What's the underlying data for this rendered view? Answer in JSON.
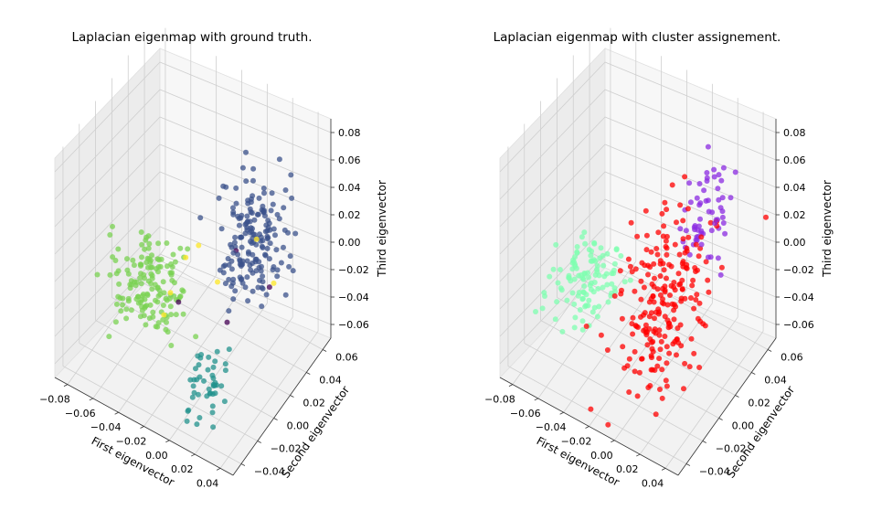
{
  "chart_data": [
    {
      "type": "scatter",
      "dimensions": 3,
      "title": "Laplacian eigenmap with ground truth.",
      "xlabel": "First eigenvector",
      "ylabel": "Second eigenvector",
      "zlabel": "Third eigenvector",
      "xlim": [
        -0.09,
        0.05
      ],
      "ylim": [
        -0.05,
        0.07
      ],
      "zlim": [
        -0.07,
        0.09
      ],
      "xticks": [
        "−0.08",
        "−0.06",
        "−0.04",
        "−0.02",
        "0.00",
        "0.02",
        "0.04"
      ],
      "yticks": [
        "−0.04",
        "−0.02",
        "0.00",
        "0.02",
        "0.04",
        "0.06"
      ],
      "zticks": [
        "−0.06",
        "−0.04",
        "−0.02",
        "0.00",
        "0.02",
        "0.04",
        "0.06",
        "0.08"
      ],
      "grid": true,
      "color_meaning": "ground-truth class",
      "clusters": [
        {
          "color": "#7ad151",
          "count": 150,
          "center": [
            -0.045,
            -0.005,
            -0.015
          ],
          "spread": [
            0.012,
            0.014,
            0.012
          ]
        },
        {
          "color": "#3b528b",
          "count": 175,
          "center": [
            0.012,
            0.035,
            0.01
          ],
          "spread": [
            0.011,
            0.013,
            0.018
          ]
        },
        {
          "color": "#21918c",
          "count": 45,
          "center": [
            0.015,
            -0.028,
            -0.04
          ],
          "spread": [
            0.005,
            0.01,
            0.012
          ]
        },
        {
          "color": "#fde725",
          "count": 7,
          "center": [
            -0.01,
            0.01,
            0.0
          ],
          "spread": [
            0.02,
            0.02,
            0.02
          ]
        },
        {
          "color": "#440154",
          "count": 4,
          "center": [
            0.01,
            0.02,
            -0.02
          ],
          "spread": [
            0.015,
            0.015,
            0.015
          ]
        }
      ]
    },
    {
      "type": "scatter",
      "dimensions": 3,
      "title": "Laplacian eigenmap with cluster assignement.",
      "xlabel": "First eigenvector",
      "ylabel": "Second eigenvector",
      "zlabel": "Third eigenvector",
      "xlim": [
        -0.09,
        0.05
      ],
      "ylim": [
        -0.05,
        0.07
      ],
      "zlim": [
        -0.07,
        0.09
      ],
      "xticks": [
        "−0.08",
        "−0.06",
        "−0.04",
        "−0.02",
        "0.00",
        "0.02",
        "0.04"
      ],
      "yticks": [
        "−0.04",
        "−0.02",
        "0.00",
        "0.02",
        "0.04",
        "0.06"
      ],
      "zticks": [
        "−0.06",
        "−0.04",
        "−0.02",
        "0.00",
        "0.02",
        "0.04",
        "0.06",
        "0.08"
      ],
      "grid": true,
      "color_meaning": "cluster assignment",
      "clusters": [
        {
          "color": "#7fffb0",
          "count": 110,
          "center": [
            -0.05,
            -0.005,
            -0.015
          ],
          "spread": [
            0.011,
            0.013,
            0.011
          ]
        },
        {
          "color": "#ff0000",
          "count": 220,
          "center": [
            0.005,
            0.0,
            -0.01
          ],
          "spread": [
            0.014,
            0.022,
            0.024
          ]
        },
        {
          "color": "#8b2be2",
          "count": 60,
          "center": [
            0.01,
            0.045,
            0.02
          ],
          "spread": [
            0.01,
            0.01,
            0.014
          ]
        }
      ]
    }
  ]
}
